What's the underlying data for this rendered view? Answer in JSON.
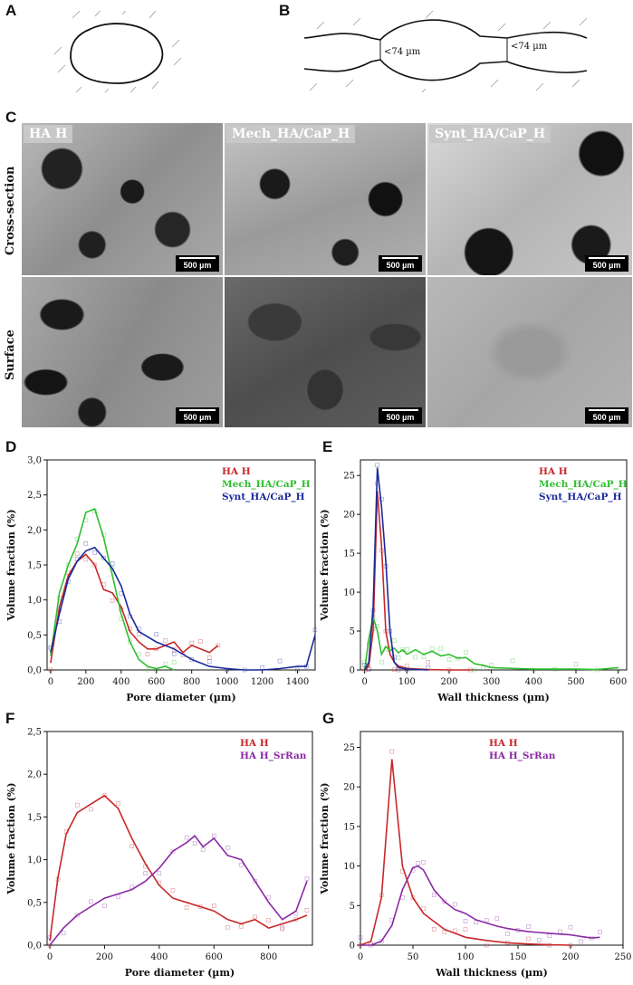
{
  "panels": {
    "a": "A",
    "b": "B",
    "c": "C",
    "d": "D",
    "e": "E",
    "f": "F",
    "g": "G"
  },
  "schematic_b": {
    "neck_left": "<74 µm",
    "neck_right": "<74 µm"
  },
  "sem": {
    "row_labels": [
      "Cross-section",
      "Surface"
    ],
    "columns": [
      "HA H",
      "Mech_HA/CaP_H",
      "Synt_HA/CaP_H"
    ],
    "scale_bar": "500 µm"
  },
  "colors": {
    "red": "#c8282a",
    "green": "#2fbf2f",
    "blue": "#1c2a9c",
    "purple": "#8a2aa5"
  },
  "chart_data": [
    {
      "panel": "D",
      "type": "line",
      "xlabel": "Pore diameter (µm)",
      "ylabel": "Volume fraction (%)",
      "xlim": [
        -20,
        1500
      ],
      "ylim": [
        0,
        3.0
      ],
      "xticks": [
        0,
        200,
        400,
        600,
        800,
        1000,
        1200,
        1400
      ],
      "yticks": [
        0,
        0.5,
        1.0,
        1.5,
        2.0,
        2.5,
        3.0
      ],
      "yticklabels": [
        "0,0",
        "0,5",
        "1,0",
        "1,5",
        "2,0",
        "2,5",
        "3,0"
      ],
      "series": [
        {
          "name": "HA H",
          "color": "red",
          "x": [
            0,
            50,
            100,
            150,
            200,
            250,
            300,
            350,
            400,
            450,
            500,
            550,
            600,
            650,
            700,
            750,
            800,
            850,
            900,
            950
          ],
          "y": [
            0.1,
            0.9,
            1.35,
            1.55,
            1.65,
            1.5,
            1.15,
            1.1,
            0.9,
            0.55,
            0.4,
            0.3,
            0.3,
            0.35,
            0.4,
            0.25,
            0.35,
            0.3,
            0.25,
            0.35
          ]
        },
        {
          "name": "Mech_HA/CaP_H",
          "color": "green",
          "x": [
            0,
            50,
            100,
            150,
            200,
            250,
            300,
            350,
            400,
            450,
            500,
            550,
            600,
            650,
            700
          ],
          "y": [
            0.2,
            1.1,
            1.5,
            1.8,
            2.25,
            2.3,
            1.9,
            1.35,
            0.8,
            0.4,
            0.15,
            0.05,
            0.02,
            0.05,
            0.0
          ]
        },
        {
          "name": "Synt_HA/CaP_H",
          "color": "blue",
          "x": [
            0,
            50,
            100,
            150,
            200,
            250,
            300,
            350,
            400,
            450,
            500,
            600,
            700,
            800,
            900,
            1000,
            1100,
            1200,
            1300,
            1400,
            1450,
            1500
          ],
          "y": [
            0.25,
            0.8,
            1.3,
            1.55,
            1.7,
            1.75,
            1.6,
            1.45,
            1.2,
            0.8,
            0.55,
            0.4,
            0.3,
            0.15,
            0.05,
            0.02,
            0.0,
            0.0,
            0.02,
            0.05,
            0.05,
            0.5
          ]
        }
      ]
    },
    {
      "panel": "E",
      "type": "line",
      "xlabel": "Wall thickness (µm)",
      "ylabel": "Volume fraction (%)",
      "xlim": [
        -10,
        620
      ],
      "ylim": [
        0,
        27
      ],
      "xticks": [
        0,
        100,
        200,
        300,
        400,
        500,
        600
      ],
      "yticks": [
        0,
        5,
        10,
        15,
        20,
        25
      ],
      "series": [
        {
          "name": "HA H",
          "color": "red",
          "x": [
            0,
            10,
            20,
            30,
            40,
            50,
            60,
            70,
            80,
            100,
            150,
            200,
            250
          ],
          "y": [
            0,
            0.5,
            5,
            23,
            16,
            5,
            2,
            1,
            0.5,
            0.2,
            0.05,
            0,
            0
          ]
        },
        {
          "name": "Mech_HA/CaP_H",
          "color": "green",
          "x": [
            0,
            10,
            20,
            30,
            40,
            50,
            60,
            70,
            80,
            90,
            100,
            120,
            140,
            160,
            180,
            200,
            220,
            240,
            260,
            280,
            300,
            350,
            400,
            450,
            500,
            550,
            600
          ],
          "y": [
            0,
            4,
            6.8,
            5,
            2,
            3,
            2.5,
            2.8,
            2.2,
            2.6,
            2.0,
            2.6,
            2.0,
            2.4,
            1.8,
            2.0,
            1.5,
            1.6,
            0.8,
            0.6,
            0.3,
            0.2,
            0.1,
            0.1,
            0.1,
            0.05,
            0.3
          ]
        },
        {
          "name": "Synt_HA/CaP_H",
          "color": "blue",
          "x": [
            0,
            10,
            20,
            30,
            40,
            50,
            60,
            70,
            80,
            100,
            150
          ],
          "y": [
            0,
            1,
            8,
            26,
            21,
            14,
            5,
            1,
            0.3,
            0.1,
            0
          ]
        }
      ]
    },
    {
      "panel": "F",
      "type": "line",
      "xlabel": "Pore diameter (µm)",
      "ylabel": "Volume fraction (%)",
      "xlim": [
        -10,
        960
      ],
      "ylim": [
        0,
        2.5
      ],
      "xticks": [
        0,
        200,
        400,
        600,
        800
      ],
      "yticks": [
        0,
        0.5,
        1.0,
        1.5,
        2.0,
        2.5
      ],
      "yticklabels": [
        "0,0",
        "0,5",
        "1,0",
        "1,5",
        "2,0",
        "2,5"
      ],
      "series": [
        {
          "name": "HA H",
          "color": "red",
          "x": [
            0,
            30,
            60,
            100,
            150,
            200,
            250,
            300,
            350,
            400,
            450,
            500,
            550,
            600,
            650,
            700,
            750,
            800,
            850,
            900,
            940
          ],
          "y": [
            0.05,
            0.8,
            1.3,
            1.55,
            1.65,
            1.75,
            1.6,
            1.25,
            0.95,
            0.7,
            0.55,
            0.5,
            0.45,
            0.4,
            0.3,
            0.25,
            0.3,
            0.2,
            0.25,
            0.3,
            0.35
          ]
        },
        {
          "name": "HA H_SrRan",
          "color": "purple",
          "x": [
            0,
            50,
            100,
            150,
            200,
            250,
            300,
            350,
            400,
            450,
            500,
            530,
            560,
            600,
            650,
            700,
            750,
            800,
            850,
            900,
            940
          ],
          "y": [
            0.0,
            0.2,
            0.35,
            0.45,
            0.55,
            0.6,
            0.65,
            0.75,
            0.9,
            1.1,
            1.2,
            1.28,
            1.15,
            1.25,
            1.05,
            1.0,
            0.75,
            0.5,
            0.3,
            0.4,
            0.75
          ]
        }
      ]
    },
    {
      "panel": "G",
      "type": "line",
      "xlabel": "Wall thickness (µm)",
      "ylabel": "Volume fraction (%)",
      "xlim": [
        0,
        250
      ],
      "ylim": [
        0,
        27
      ],
      "xticks": [
        0,
        50,
        100,
        150,
        200,
        250
      ],
      "yticks": [
        0,
        5,
        10,
        15,
        20,
        25
      ],
      "series": [
        {
          "name": "HA H",
          "color": "red",
          "x": [
            0,
            10,
            20,
            30,
            40,
            50,
            60,
            70,
            80,
            90,
            100,
            120,
            140,
            160,
            180,
            200
          ],
          "y": [
            0,
            0.5,
            6,
            23.5,
            10,
            6,
            4,
            3,
            2,
            1.5,
            1,
            0.6,
            0.3,
            0.15,
            0.05,
            0
          ]
        },
        {
          "name": "HA H_SrRan",
          "color": "purple",
          "x": [
            0,
            10,
            20,
            30,
            40,
            50,
            55,
            60,
            70,
            80,
            90,
            100,
            110,
            120,
            130,
            140,
            150,
            160,
            170,
            180,
            190,
            200,
            210,
            220,
            228
          ],
          "y": [
            0,
            0,
            0.5,
            2.5,
            7,
            9.8,
            10,
            9.5,
            7,
            5.5,
            4.5,
            4,
            3.2,
            2.8,
            2.4,
            2.1,
            1.9,
            1.7,
            1.6,
            1.5,
            1.4,
            1.3,
            1.1,
            0.9,
            1.0
          ]
        }
      ]
    }
  ]
}
